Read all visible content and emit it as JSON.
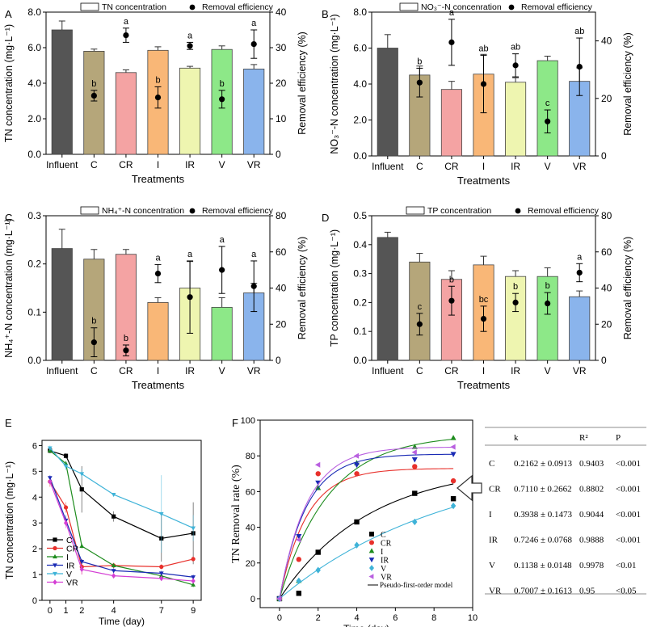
{
  "chart_data": [
    {
      "panel": "A",
      "type": "bar+scatter",
      "categories": [
        "Influent",
        "C",
        "CR",
        "I",
        "IR",
        "V",
        "VR"
      ],
      "xlabel": "Treatments",
      "ylabel": "TN concentration (mg·L⁻¹)",
      "y2label": "Removal efficiency (%)",
      "ylim": [
        0,
        8
      ],
      "y2lim": [
        0,
        40
      ],
      "yticks": [
        "0.0",
        "2.0",
        "4.0",
        "6.0",
        "8.0"
      ],
      "y2ticks": [
        "0",
        "10",
        "20",
        "30",
        "40"
      ],
      "legend": {
        "bar": "TN concentration",
        "dot": "Removal efficiency"
      },
      "bars": [
        7.0,
        5.8,
        4.6,
        5.85,
        4.85,
        5.9,
        4.8
      ],
      "bar_err": [
        0.5,
        0.12,
        0.15,
        0.2,
        0.1,
        0.2,
        0.25
      ],
      "dots": [
        null,
        16.5,
        33.5,
        16.0,
        30.5,
        15.5,
        31.0
      ],
      "dot_err": [
        null,
        1.5,
        2.0,
        3.0,
        1.0,
        2.5,
        4.0
      ],
      "letters": [
        "",
        "b",
        "a",
        "b",
        "a",
        "b",
        "a"
      ]
    },
    {
      "panel": "B",
      "type": "bar+scatter",
      "categories": [
        "Influent",
        "C",
        "CR",
        "I",
        "IR",
        "V",
        "VR"
      ],
      "xlabel": "Treatments",
      "ylabel": "NO₃⁻-N concentration (mg·L⁻¹)",
      "y2label": "Removal efficiency (%)",
      "ylim": [
        0,
        8
      ],
      "y2lim": [
        0,
        50
      ],
      "yticks": [
        "0.0",
        "2.0",
        "4.0",
        "6.0",
        "8.0"
      ],
      "y2ticks": [
        "0",
        "20",
        "40"
      ],
      "legend": {
        "bar": "NO₃⁻-N concenration",
        "dot": "Removal efficiency"
      },
      "bars": [
        6.0,
        4.5,
        3.7,
        4.55,
        4.1,
        5.3,
        4.15
      ],
      "bar_err": [
        0.75,
        0.5,
        0.45,
        1.1,
        0.25,
        0.25,
        0.75
      ],
      "dots": [
        null,
        25.5,
        39.5,
        25.0,
        31.5,
        12.0,
        31.0
      ],
      "dot_err": [
        null,
        5.0,
        8.0,
        10.0,
        4.0,
        4.0,
        10.0
      ],
      "letters": [
        "",
        "b",
        "a",
        "ab",
        "ab",
        "c",
        "ab"
      ]
    },
    {
      "panel": "C",
      "type": "bar+scatter",
      "categories": [
        "Influent",
        "C",
        "CR",
        "I",
        "IR",
        "V",
        "VR"
      ],
      "xlabel": "Treatments",
      "ylabel": "NH₄⁺-N concentration (mg·L⁻¹)",
      "y2label": "Removal efficiency (%)",
      "ylim": [
        0,
        0.3
      ],
      "y2lim": [
        0,
        80
      ],
      "yticks": [
        "0.0",
        "0.1",
        "0.2",
        "0.3"
      ],
      "y2ticks": [
        "0",
        "20",
        "40",
        "60",
        "80"
      ],
      "legend": {
        "bar": "NH₄⁺-N concentration",
        "dot": "Removal efficiency"
      },
      "bars": [
        0.232,
        0.21,
        0.22,
        0.12,
        0.15,
        0.11,
        0.14
      ],
      "bar_err": [
        0.04,
        0.02,
        0.01,
        0.01,
        0.055,
        0.02,
        0.02
      ],
      "dots": [
        null,
        10.0,
        5.5,
        48.0,
        35.0,
        50.0,
        41.0
      ],
      "dot_err": [
        null,
        8.0,
        3.0,
        5.0,
        20.0,
        13.0,
        14.0
      ],
      "letters": [
        "",
        "b",
        "b",
        "a",
        "a",
        "a",
        "a"
      ]
    },
    {
      "panel": "D",
      "type": "bar+scatter",
      "categories": [
        "Influent",
        "C",
        "CR",
        "I",
        "IR",
        "V",
        "VR"
      ],
      "xlabel": "Treatments",
      "ylabel": "TP concentration (mg·L⁻¹)",
      "y2label": "Removal efficiency (%)",
      "ylim": [
        0,
        0.5
      ],
      "y2lim": [
        0,
        80
      ],
      "yticks": [
        "0.0",
        "0.1",
        "0.2",
        "0.3",
        "0.4",
        "0.5"
      ],
      "y2ticks": [
        "0",
        "20",
        "40",
        "60",
        "80"
      ],
      "legend": {
        "bar": "TP concentration",
        "dot": "Removal efficiency"
      },
      "bars": [
        0.425,
        0.34,
        0.28,
        0.33,
        0.29,
        0.29,
        0.22
      ],
      "bar_err": [
        0.018,
        0.03,
        0.03,
        0.03,
        0.02,
        0.03,
        0.02
      ],
      "dots": [
        null,
        20.0,
        33.0,
        23.0,
        32.0,
        31.5,
        48.5
      ],
      "dot_err": [
        null,
        6.0,
        8.0,
        7.0,
        5.0,
        6.0,
        5.0
      ],
      "letters": [
        "",
        "c",
        "b",
        "bc",
        "b",
        "b",
        "a"
      ]
    },
    {
      "panel": "E",
      "type": "line",
      "xlabel": "Time (day)",
      "ylabel": "TN concentration (mg·L⁻¹)",
      "xlim": [
        -0.5,
        9.5
      ],
      "ylim": [
        0,
        6.2
      ],
      "xticks": [
        "0",
        "1",
        "2",
        "4",
        "7",
        "9"
      ],
      "yticks": [
        "0",
        "1",
        "2",
        "3",
        "4",
        "5",
        "6"
      ],
      "x": [
        0,
        1,
        2,
        4,
        7,
        9
      ],
      "series": [
        {
          "name": "C",
          "color": "#000000",
          "marker": "square",
          "values": [
            5.8,
            5.6,
            4.3,
            3.25,
            2.4,
            2.6
          ],
          "err": [
            0.1,
            0.1,
            0.9,
            0.2,
            0.9,
            1.2
          ]
        },
        {
          "name": "CR",
          "color": "#e8302b",
          "marker": "circle",
          "values": [
            4.6,
            3.6,
            1.3,
            1.35,
            1.3,
            1.6
          ],
          "err": [
            0.2,
            0.2,
            0.3,
            0.1,
            0.1,
            0.1
          ]
        },
        {
          "name": "I",
          "color": "#1e8c1e",
          "marker": "triangle-up",
          "values": [
            5.8,
            5.3,
            2.1,
            1.35,
            0.95,
            0.6
          ],
          "err": [
            0.1,
            0.1,
            0.1,
            0.1,
            0.1,
            0.1
          ]
        },
        {
          "name": "IR",
          "color": "#1a2bb5",
          "marker": "triangle-down",
          "values": [
            4.75,
            3.1,
            1.5,
            1.15,
            1.05,
            0.9
          ],
          "err": [
            0.1,
            0.2,
            0.1,
            0.1,
            0.1,
            0.1
          ]
        },
        {
          "name": "V",
          "color": "#3fb3d8",
          "marker": "triangle-down",
          "values": [
            5.9,
            5.2,
            4.9,
            4.1,
            3.35,
            2.8
          ],
          "err": [
            0.1,
            0.15,
            0.2,
            0.05,
            1.5,
            0.5
          ]
        },
        {
          "name": "VR",
          "color": "#d43fd4",
          "marker": "diamond",
          "values": [
            4.6,
            3.0,
            1.2,
            0.95,
            0.85,
            0.75
          ],
          "err": [
            0.1,
            0.2,
            0.2,
            0.1,
            0.1,
            0.1
          ]
        }
      ]
    },
    {
      "panel": "F",
      "type": "scatter+fit",
      "xlabel": "Time (day)",
      "ylabel": "TN Removal rate (%)",
      "xlim": [
        -1,
        10
      ],
      "ylim": [
        -5,
        100
      ],
      "xticks": [
        "0",
        "2",
        "4",
        "6",
        "8",
        "10"
      ],
      "yticks": [
        "0",
        "20",
        "40",
        "60",
        "80",
        "100"
      ],
      "x": [
        0,
        1,
        2,
        4,
        7,
        9
      ],
      "fit_label": "Pseudo-first-order model",
      "series": [
        {
          "name": "C",
          "color": "#000000",
          "marker": "square",
          "values": [
            0,
            3,
            26,
            43,
            59,
            56
          ],
          "A": 75,
          "k": 0.2162
        },
        {
          "name": "CR",
          "color": "#e8302b",
          "marker": "circle",
          "values": [
            0,
            22,
            70,
            70,
            74,
            66
          ],
          "A": 73,
          "k": 0.711
        },
        {
          "name": "I",
          "color": "#1e8c1e",
          "marker": "triangle-up",
          "values": [
            0,
            10,
            62,
            76,
            85,
            90
          ],
          "A": 92,
          "k": 0.3938
        },
        {
          "name": "IR",
          "color": "#1a2bb5",
          "marker": "triangle-down",
          "values": [
            0,
            35,
            65,
            75,
            78,
            81
          ],
          "A": 81,
          "k": 0.7246
        },
        {
          "name": "V",
          "color": "#3fb3d8",
          "marker": "diamond",
          "values": [
            0,
            10,
            16,
            30,
            43,
            52
          ],
          "A": 80,
          "k": 0.1138
        },
        {
          "name": "VR",
          "color": "#b960e0",
          "marker": "triangle-left",
          "values": [
            0,
            33,
            75,
            80,
            82,
            85
          ],
          "A": 85,
          "k": 0.7007
        }
      ]
    }
  ],
  "panel_letters": {
    "A": "A",
    "B": "B",
    "C": "C",
    "D": "D",
    "E": "E",
    "F": "F"
  },
  "kinetics_table": {
    "headers": [
      "k",
      "R²",
      "P"
    ],
    "rows": [
      {
        "treatment": "C",
        "k": "0.2162 ± 0.0913",
        "r2": "0.9403",
        "p": "<0.001"
      },
      {
        "treatment": "CR",
        "k": "0.7110 ± 0.2662",
        "r2": "0.8802",
        "p": "<0.001"
      },
      {
        "treatment": "I",
        "k": "0.3938 ± 0.1473",
        "r2": "0.9044",
        "p": "<0.001"
      },
      {
        "treatment": "IR",
        "k": "0.7246 ± 0.0768",
        "r2": "0.9888",
        "p": "<0.001"
      },
      {
        "treatment": "V",
        "k": "0.1138 ± 0.0148",
        "r2": "0.9978",
        "p": "<0.01"
      },
      {
        "treatment": "VR",
        "k": "0.7007 ± 0.1613",
        "r2": "0.95",
        "p": "<0.05"
      }
    ]
  },
  "colors": {
    "bars": [
      "#555555",
      "#b5a67a",
      "#f4a3a3",
      "#f9b777",
      "#eef5b0",
      "#8de888",
      "#8ab4ec"
    ]
  }
}
